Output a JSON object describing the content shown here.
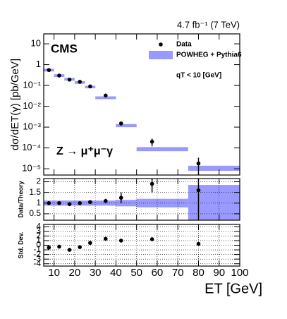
{
  "chart_data": [
    {
      "type": "errorbar",
      "title": "4.7 fb⁻¹ (7 TeV)",
      "ylabel": "dσ/dET(γ) [pb/GeV]",
      "log_y": true,
      "annotations": [
        "CMS",
        "qT < 10 [GeV]",
        "Z → μ⁺μ⁻γ"
      ],
      "xlim": [
        5,
        100
      ],
      "xticks": [
        10,
        20,
        30,
        40,
        50,
        60,
        70,
        80,
        90,
        100
      ],
      "ylim": [
        5e-06,
        30
      ],
      "yticks": [
        {
          "value": 1e-05,
          "label": "10⁻⁵"
        },
        {
          "value": 0.0001,
          "label": "10⁻⁴"
        },
        {
          "value": 0.001,
          "label": "10⁻³"
        },
        {
          "value": 0.01,
          "label": "10⁻²"
        },
        {
          "value": 0.1,
          "label": "10⁻¹"
        },
        1,
        10
      ],
      "x": [
        7.5,
        12.5,
        17.5,
        22.5,
        27.5,
        35,
        42.5,
        57.5,
        80
      ],
      "series": [
        {
          "name": "Data",
          "color": "#000000",
          "values": [
            0.55,
            0.3,
            0.19,
            0.15,
            0.09,
            0.033,
            0.0015,
            0.0002,
            1.8e-05
          ],
          "errors": [
            0.03,
            0.02,
            0.015,
            0.012,
            0.008,
            0.004,
            0.0003,
            8e-05,
            1.6e-05
          ]
        },
        {
          "name": "POWHEG + Pythia6",
          "color": "#9999ff",
          "bins": [
            5,
            10,
            15,
            20,
            25,
            30,
            40,
            50,
            75,
            100
          ],
          "values": [
            0.55,
            0.3,
            0.2,
            0.14,
            0.085,
            0.026,
            0.0012,
            9e-05,
            1.1e-05
          ],
          "errors": [
            0.08,
            0.045,
            0.03,
            0.02,
            0.012,
            0.004,
            0.0002,
            2e-05,
            3e-06
          ]
        }
      ],
      "legend": "upper right"
    },
    {
      "type": "ratio",
      "ylabel": "Data/Theory",
      "xlim": [
        5,
        100
      ],
      "xticks": [
        10,
        20,
        30,
        40,
        50,
        60,
        70,
        80,
        90,
        100
      ],
      "ylim": [
        0.2,
        2.15
      ],
      "yticks": [
        0.5,
        1,
        1.5,
        2
      ],
      "grid": true,
      "x": [
        7.5,
        12.5,
        17.5,
        22.5,
        27.5,
        35,
        42.5,
        57.5,
        80
      ],
      "series": [
        {
          "name": "Data",
          "color": "#000000",
          "values": [
            1.0,
            1.0,
            0.95,
            1.0,
            1.05,
            1.1,
            1.25,
            1.9,
            1.6
          ],
          "errors": [
            0.05,
            0.05,
            0.06,
            0.06,
            0.07,
            0.1,
            0.25,
            0.4,
            1.5
          ]
        },
        {
          "name": "POWHEG + Pythia6",
          "color": "#9999ff",
          "bins": [
            5,
            10,
            15,
            20,
            25,
            30,
            40,
            50,
            75,
            100
          ],
          "values": [
            1,
            1,
            1,
            1,
            1,
            1,
            1,
            1,
            1
          ],
          "errors": [
            0.12,
            0.12,
            0.12,
            0.12,
            0.12,
            0.12,
            0.15,
            0.2,
            0.85
          ]
        }
      ]
    },
    {
      "type": "scatter",
      "ylabel": "Std. Dev.",
      "xlabel": "ET [GeV]",
      "xlim": [
        5,
        100
      ],
      "xticks": [
        10,
        20,
        30,
        40,
        50,
        60,
        70,
        80,
        90,
        100
      ],
      "ylim": [
        -4.5,
        4.5
      ],
      "yticks": [
        -4,
        -3,
        -2,
        -1,
        0,
        1,
        2,
        3,
        4
      ],
      "grid": true,
      "x": [
        7.5,
        12.5,
        17.5,
        22.5,
        27.5,
        35,
        42.5,
        57.5,
        80
      ],
      "values": [
        -0.5,
        -0.3,
        -1.0,
        -0.4,
        0.5,
        1.4,
        1.0,
        1.3,
        0.3
      ],
      "color": "#000000"
    }
  ]
}
